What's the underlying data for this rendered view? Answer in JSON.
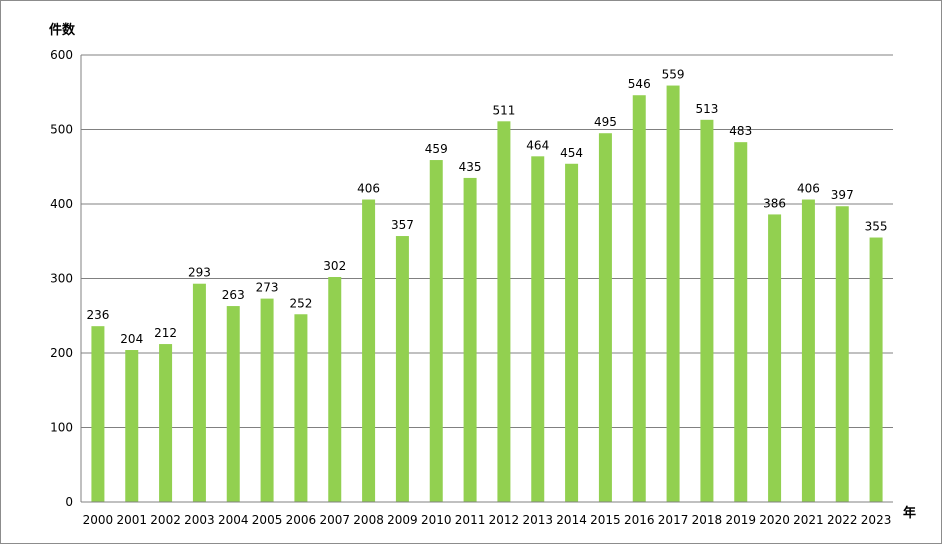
{
  "chart_data": {
    "type": "bar",
    "title": "",
    "ylabel": "件数",
    "xlabel": "年",
    "categories": [
      "2000",
      "2001",
      "2002",
      "2003",
      "2004",
      "2005",
      "2006",
      "2007",
      "2008",
      "2009",
      "2010",
      "2011",
      "2012",
      "2013",
      "2014",
      "2015",
      "2016",
      "2017",
      "2018",
      "2019",
      "2020",
      "2021",
      "2022",
      "2023"
    ],
    "values": [
      236,
      204,
      212,
      293,
      263,
      273,
      252,
      302,
      406,
      357,
      459,
      435,
      511,
      464,
      454,
      495,
      546,
      559,
      513,
      483,
      386,
      406,
      397,
      355
    ],
    "ylim": [
      0,
      600
    ],
    "yticks": [
      0,
      100,
      200,
      300,
      400,
      500,
      600
    ],
    "grid": true,
    "data_labels": true,
    "bar_color": "#92d050",
    "grid_color": "#808080"
  }
}
